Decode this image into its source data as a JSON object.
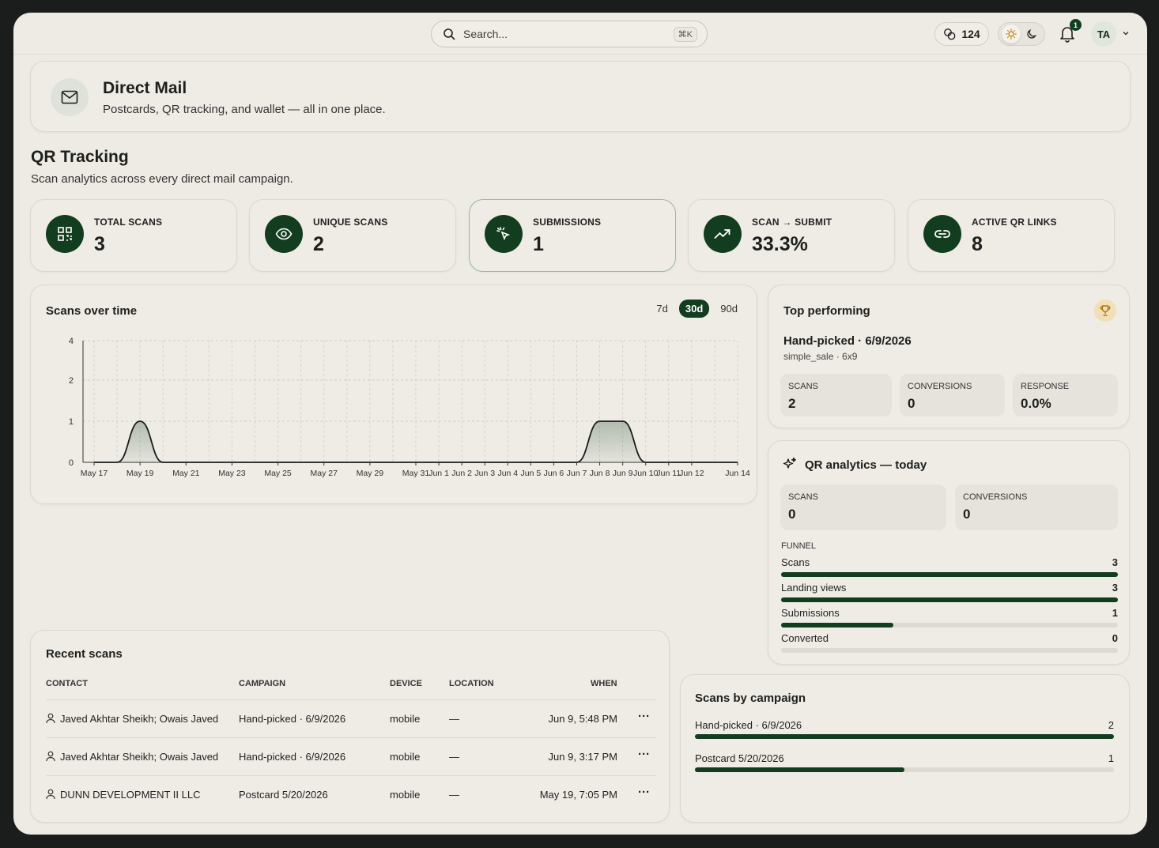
{
  "topbar": {
    "search_placeholder": "Search...",
    "search_shortcut": "⌘K",
    "credits": "124",
    "notification_count": "1",
    "avatar_initials": "TA"
  },
  "hero": {
    "title": "Direct Mail",
    "subtitle": "Postcards, QR tracking, and wallet — all in one place."
  },
  "section": {
    "title": "QR Tracking",
    "subtitle": "Scan analytics across every direct mail campaign."
  },
  "stats": [
    {
      "label": "TOTAL SCANS",
      "value": "3",
      "icon": "qr-code-icon"
    },
    {
      "label": "UNIQUE SCANS",
      "value": "2",
      "icon": "eye-icon"
    },
    {
      "label": "SUBMISSIONS",
      "value": "1",
      "icon": "cursor-click-icon"
    },
    {
      "label": "SCAN → SUBMIT",
      "value": "33.3%",
      "icon": "trending-up-icon"
    },
    {
      "label": "ACTIVE QR LINKS",
      "value": "8",
      "icon": "link-icon"
    }
  ],
  "scans_chart": {
    "title": "Scans over time",
    "ranges": [
      "7d",
      "30d",
      "90d"
    ],
    "selected_range": "30d"
  },
  "chart_data": {
    "type": "area",
    "title": "Scans over time",
    "x": [
      "May 17",
      "May 18",
      "May 19",
      "May 20",
      "May 21",
      "May 22",
      "May 23",
      "May 24",
      "May 25",
      "May 26",
      "May 27",
      "May 28",
      "May 29",
      "May 30",
      "May 31",
      "Jun 1",
      "Jun 2",
      "Jun 3",
      "Jun 4",
      "Jun 5",
      "Jun 6",
      "Jun 7",
      "Jun 8",
      "Jun 9",
      "Jun 10",
      "Jun 11",
      "Jun 12",
      "Jun 13",
      "Jun 14"
    ],
    "x_tick_labels": [
      "May 17",
      "May 19",
      "May 21",
      "May 23",
      "May 25",
      "May 27",
      "May 29",
      "May 31",
      "Jun 1",
      "Jun 2",
      "Jun 3",
      "Jun 4",
      "Jun 5",
      "Jun 6",
      "Jun 7",
      "Jun 8",
      "Jun 9",
      "Jun 10",
      "Jun 11",
      "Jun 12",
      "Jun 14"
    ],
    "values": [
      0,
      0,
      1,
      0,
      0,
      0,
      0,
      0,
      0,
      0,
      0,
      0,
      0,
      0,
      0,
      0,
      0,
      0,
      0,
      0,
      0,
      0,
      1,
      1,
      0,
      0,
      0,
      0,
      0
    ],
    "y_ticks": [
      0,
      1,
      2,
      4
    ],
    "ylim": [
      0,
      4
    ],
    "grid": true,
    "color": "#123d1e"
  },
  "top_performing": {
    "title": "Top performing",
    "campaign": "Hand-picked · 6/9/2026",
    "detail": "simple_sale · 6x9",
    "metrics": [
      {
        "label": "SCANS",
        "value": "2"
      },
      {
        "label": "CONVERSIONS",
        "value": "0"
      },
      {
        "label": "RESPONSE",
        "value": "0.0%"
      }
    ]
  },
  "qr_today": {
    "title": "QR analytics — today",
    "metrics": [
      {
        "label": "SCANS",
        "value": "0"
      },
      {
        "label": "CONVERSIONS",
        "value": "0"
      }
    ],
    "funnel_label": "FUNNEL",
    "funnel": [
      {
        "label": "Scans",
        "value": "3",
        "fraction": 1.0
      },
      {
        "label": "Landing views",
        "value": "3",
        "fraction": 1.0
      },
      {
        "label": "Submissions",
        "value": "1",
        "fraction": 0.333
      },
      {
        "label": "Converted",
        "value": "0",
        "fraction": 0.0
      }
    ]
  },
  "recent_scans": {
    "title": "Recent scans",
    "columns": [
      "CONTACT",
      "CAMPAIGN",
      "DEVICE",
      "LOCATION",
      "WHEN"
    ],
    "rows": [
      {
        "contact": "Javed Akhtar Sheikh; Owais Javed",
        "campaign": "Hand-picked · 6/9/2026",
        "device": "mobile",
        "location": "—",
        "when": "Jun 9, 5:48 PM"
      },
      {
        "contact": "Javed Akhtar Sheikh; Owais Javed",
        "campaign": "Hand-picked · 6/9/2026",
        "device": "mobile",
        "location": "—",
        "when": "Jun 9, 3:17 PM"
      },
      {
        "contact": "DUNN DEVELOPMENT II LLC",
        "campaign": "Postcard 5/20/2026",
        "device": "mobile",
        "location": "—",
        "when": "May 19, 7:05 PM"
      }
    ],
    "row_menu": "···"
  },
  "scans_by_campaign": {
    "title": "Scans by campaign",
    "items": [
      {
        "label": "Hand-picked · 6/9/2026",
        "value": "2",
        "fraction": 1.0
      },
      {
        "label": "Postcard 5/20/2026",
        "value": "1",
        "fraction": 0.5
      }
    ]
  }
}
